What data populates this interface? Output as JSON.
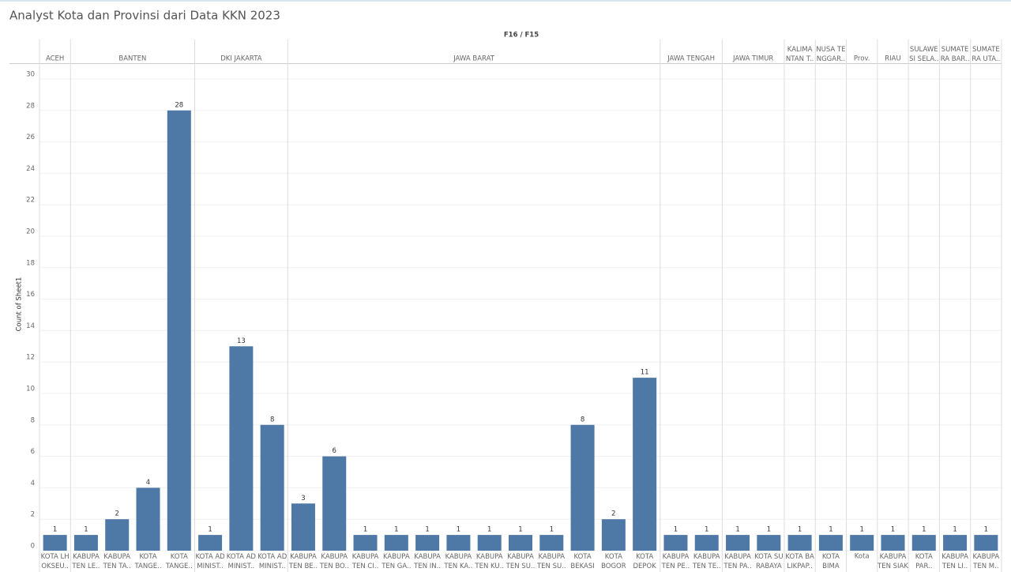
{
  "chart_data": {
    "type": "bar",
    "title": "Analyst Kota dan Provinsi dari Data KKN 2023",
    "header": "F16 / F15",
    "y_label": "Count of Sheet1",
    "color": "#4e79a7",
    "ylim": [
      0,
      30
    ],
    "yticks": [
      0,
      2,
      4,
      6,
      8,
      10,
      12,
      14,
      16,
      18,
      20,
      22,
      24,
      26,
      28,
      30
    ],
    "grid": true,
    "groups": [
      {
        "name": "ACEH",
        "categories": [
          "KOTA LH\nOKSEU.."
        ],
        "values": [
          1
        ]
      },
      {
        "name": "BANTEN",
        "categories": [
          "KABUPA\nTEN LE..",
          "KABUPA\nTEN TA..",
          "KOTA\nTANGE..",
          "KOTA\nTANGE.."
        ],
        "values": [
          1,
          2,
          4,
          28
        ]
      },
      {
        "name": "DKI JAKARTA",
        "categories": [
          "KOTA AD\nMINIST..",
          "KOTA AD\nMINIST..",
          "KOTA AD\nMINIST.."
        ],
        "values": [
          1,
          13,
          8
        ]
      },
      {
        "name": "JAWA BARAT",
        "categories": [
          "KABUPA\nTEN BE..",
          "KABUPA\nTEN BO..",
          "KABUPA\nTEN CI..",
          "KABUPA\nTEN GA..",
          "KABUPA\nTEN IN..",
          "KABUPA\nTEN KA..",
          "KABUPA\nTEN KU..",
          "KABUPA\nTEN SU..",
          "KABUPA\nTEN SU..",
          "KOTA\nBEKASI",
          "KOTA\nBOGOR",
          "KOTA\nDEPOK"
        ],
        "values": [
          3,
          6,
          1,
          1,
          1,
          1,
          1,
          1,
          1,
          8,
          2,
          11
        ]
      },
      {
        "name": "JAWA TENGAH",
        "categories": [
          "KABUPA\nTEN PE..",
          "KABUPA\nTEN TE.."
        ],
        "values": [
          1,
          1
        ]
      },
      {
        "name": "JAWA TIMUR",
        "categories": [
          "KABUPA\nTEN PA..",
          "KOTA SU\nRABAYA"
        ],
        "values": [
          1,
          1
        ]
      },
      {
        "name": "KALIMA\nNTAN T..",
        "categories": [
          "KOTA BA\nLIKPAP.."
        ],
        "values": [
          1
        ]
      },
      {
        "name": "NUSA TE\nNGGAR..",
        "categories": [
          "KOTA\nBIMA"
        ],
        "values": [
          1
        ]
      },
      {
        "name": "Prov.",
        "categories": [
          "Kota"
        ],
        "values": [
          1
        ]
      },
      {
        "name": "RIAU",
        "categories": [
          "KABUPA\nTEN SIAK"
        ],
        "values": [
          1
        ]
      },
      {
        "name": "SULAWE\nSI SELA..",
        "categories": [
          "KOTA\nPAR.."
        ],
        "values": [
          1
        ]
      },
      {
        "name": "SUMATE\nRA BAR..",
        "categories": [
          "KABUPA\nTEN LI.."
        ],
        "values": [
          1
        ]
      },
      {
        "name": "SUMATE\nRA UTA..",
        "categories": [
          "KABUPA\nTEN M.."
        ],
        "values": [
          1
        ]
      }
    ]
  }
}
